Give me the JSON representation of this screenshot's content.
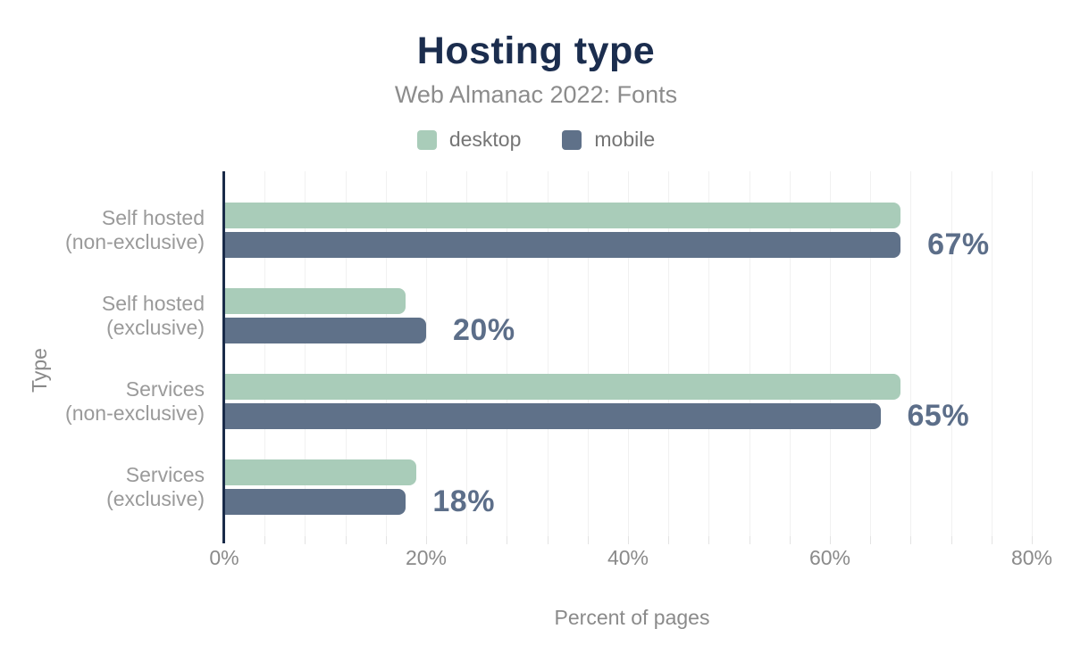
{
  "chart_data": {
    "type": "bar",
    "orientation": "horizontal",
    "title": "Hosting type",
    "subtitle": "Web Almanac 2022: Fonts",
    "categories": [
      "Self hosted\n(non-exclusive)",
      "Self hosted\n(exclusive)",
      "Services\n(non-exclusive)",
      "Services\n(exclusive)"
    ],
    "series": [
      {
        "name": "desktop",
        "color": "#a9ccb9",
        "values": [
          67,
          18,
          67,
          19
        ]
      },
      {
        "name": "mobile",
        "color": "#5f7189",
        "values": [
          67,
          20,
          65,
          18
        ]
      }
    ],
    "bar_value_labels": [
      "67%",
      "20%",
      "65%",
      "18%"
    ],
    "xlabel": "Percent of pages",
    "ylabel": "Type",
    "x_ticks": [
      {
        "label": "0%",
        "value": 0
      },
      {
        "label": "20%",
        "value": 20
      },
      {
        "label": "40%",
        "value": 40
      },
      {
        "label": "60%",
        "value": 60
      },
      {
        "label": "80%",
        "value": 80
      }
    ],
    "xlim": [
      0,
      80.8
    ],
    "grid_step_percent": 4,
    "grid": true,
    "legend_position": "top"
  },
  "colors": {
    "title": "#1b2d4e",
    "subtitle": "#8c8c8c",
    "axis_line": "#1a2b49",
    "gridline": "#f1f1f1",
    "category_label": "#9a9a9a",
    "tick_label": "#8a8a8a",
    "value_label": "#5c6e89",
    "desktop": "#a9ccb9",
    "mobile": "#5f7189",
    "background": "#ffffff"
  }
}
